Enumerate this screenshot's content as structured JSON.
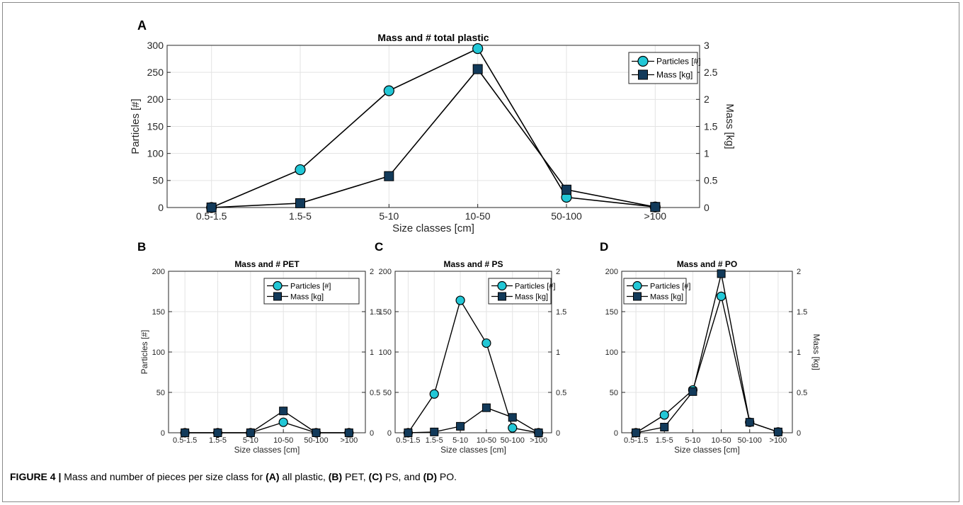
{
  "chart_data": [
    {
      "panel_letter": "A",
      "type": "line",
      "title": "Mass and # total plastic",
      "xlabel": "Size classes [cm]",
      "ylabel_left": "Particles [#]",
      "ylabel_right": "Mass [kg]",
      "categories": [
        "0.5-1.5",
        "1.5-5",
        "5-10",
        "10-50",
        "50-100",
        ">100"
      ],
      "ylim_left": [
        0,
        300
      ],
      "ylim_right": [
        0,
        3
      ],
      "yticks_left": [
        "0",
        "50",
        "100",
        "150",
        "200",
        "250",
        "300"
      ],
      "yticks_right": [
        "0",
        "0.5",
        "1",
        "1.5",
        "2",
        "2.5",
        "3"
      ],
      "series": [
        {
          "name": "Particles [#]",
          "axis": "left",
          "marker": "circle",
          "values": [
            0,
            70,
            216,
            294,
            19,
            1
          ]
        },
        {
          "name": "Mass [kg]",
          "axis": "right",
          "marker": "square",
          "values": [
            0,
            0.08,
            0.58,
            2.56,
            0.33,
            0.01
          ]
        }
      ],
      "legend": "top-right",
      "grid": true
    },
    {
      "panel_letter": "B",
      "type": "line",
      "title": "Mass and # PET",
      "xlabel": "Size classes [cm]",
      "ylabel_left": "Particles [#]",
      "ylabel_right": "",
      "categories": [
        "0.5-1.5",
        "1.5-5",
        "5-10",
        "10-50",
        "50-100",
        ">100"
      ],
      "ylim_left": [
        0,
        200
      ],
      "ylim_right": [
        0,
        2
      ],
      "yticks_left": [
        "0",
        "50",
        "100",
        "150",
        "200"
      ],
      "yticks_right": [
        "0",
        "0.5",
        "1",
        "1.5",
        "2"
      ],
      "series": [
        {
          "name": "Particles [#]",
          "axis": "left",
          "marker": "circle",
          "values": [
            0,
            0,
            0,
            13,
            0,
            0
          ]
        },
        {
          "name": "Mass [kg]",
          "axis": "right",
          "marker": "square",
          "values": [
            0,
            0,
            0,
            0.27,
            0,
            0
          ]
        }
      ],
      "legend": "top-right",
      "grid": true
    },
    {
      "panel_letter": "C",
      "type": "line",
      "title": "Mass and # PS",
      "xlabel": "Size classes [cm]",
      "ylabel_left": "",
      "ylabel_right": "",
      "categories": [
        "0.5-1.5",
        "1.5-5",
        "5-10",
        "10-50",
        "50-100",
        ">100"
      ],
      "ylim_left": [
        0,
        200
      ],
      "ylim_right": [
        0,
        2
      ],
      "yticks_left": [
        "0",
        "50",
        "100",
        "150",
        "200"
      ],
      "yticks_right": [
        "0",
        "0.5",
        "1",
        "1.5",
        "2"
      ],
      "series": [
        {
          "name": "Particles [#]",
          "axis": "left",
          "marker": "circle",
          "values": [
            0,
            48,
            164,
            111,
            6,
            0
          ]
        },
        {
          "name": "Mass [kg]",
          "axis": "right",
          "marker": "square",
          "values": [
            0,
            0.01,
            0.08,
            0.31,
            0.19,
            0
          ]
        }
      ],
      "legend": "top-right",
      "grid": true
    },
    {
      "panel_letter": "D",
      "type": "line",
      "title": "Mass and # PO",
      "xlabel": "Size classes [cm]",
      "ylabel_left": "",
      "ylabel_right": "Mass [kg]",
      "categories": [
        "0.5-1.5",
        "1.5-5",
        "5-10",
        "10-50",
        "50-100",
        ">100"
      ],
      "ylim_left": [
        0,
        200
      ],
      "ylim_right": [
        0,
        2
      ],
      "yticks_left": [
        "0",
        "50",
        "100",
        "150",
        "200"
      ],
      "yticks_right": [
        "0",
        "0.5",
        "1",
        "1.5",
        "2"
      ],
      "series": [
        {
          "name": "Particles [#]",
          "axis": "left",
          "marker": "circle",
          "values": [
            0,
            22,
            53,
            169,
            13,
            1
          ]
        },
        {
          "name": "Mass [kg]",
          "axis": "right",
          "marker": "square",
          "values": [
            0,
            0.07,
            0.51,
            1.97,
            0.13,
            0.01
          ]
        }
      ],
      "legend": "top-left",
      "grid": true
    }
  ],
  "colors": {
    "particles_fill": "#22c7d6",
    "mass_fill": "#123a5a",
    "line": "#000000",
    "grid": "#e3e3e3"
  },
  "caption": {
    "label": "FIGURE 4 |",
    "t1": " Mass and number of pieces per size class for ",
    "a": "(A)",
    "t2": " all plastic, ",
    "b": "(B)",
    "t3": " PET, ",
    "c": "(C)",
    "t4": " PS, and ",
    "d": "(D)",
    "t5": " PO."
  }
}
